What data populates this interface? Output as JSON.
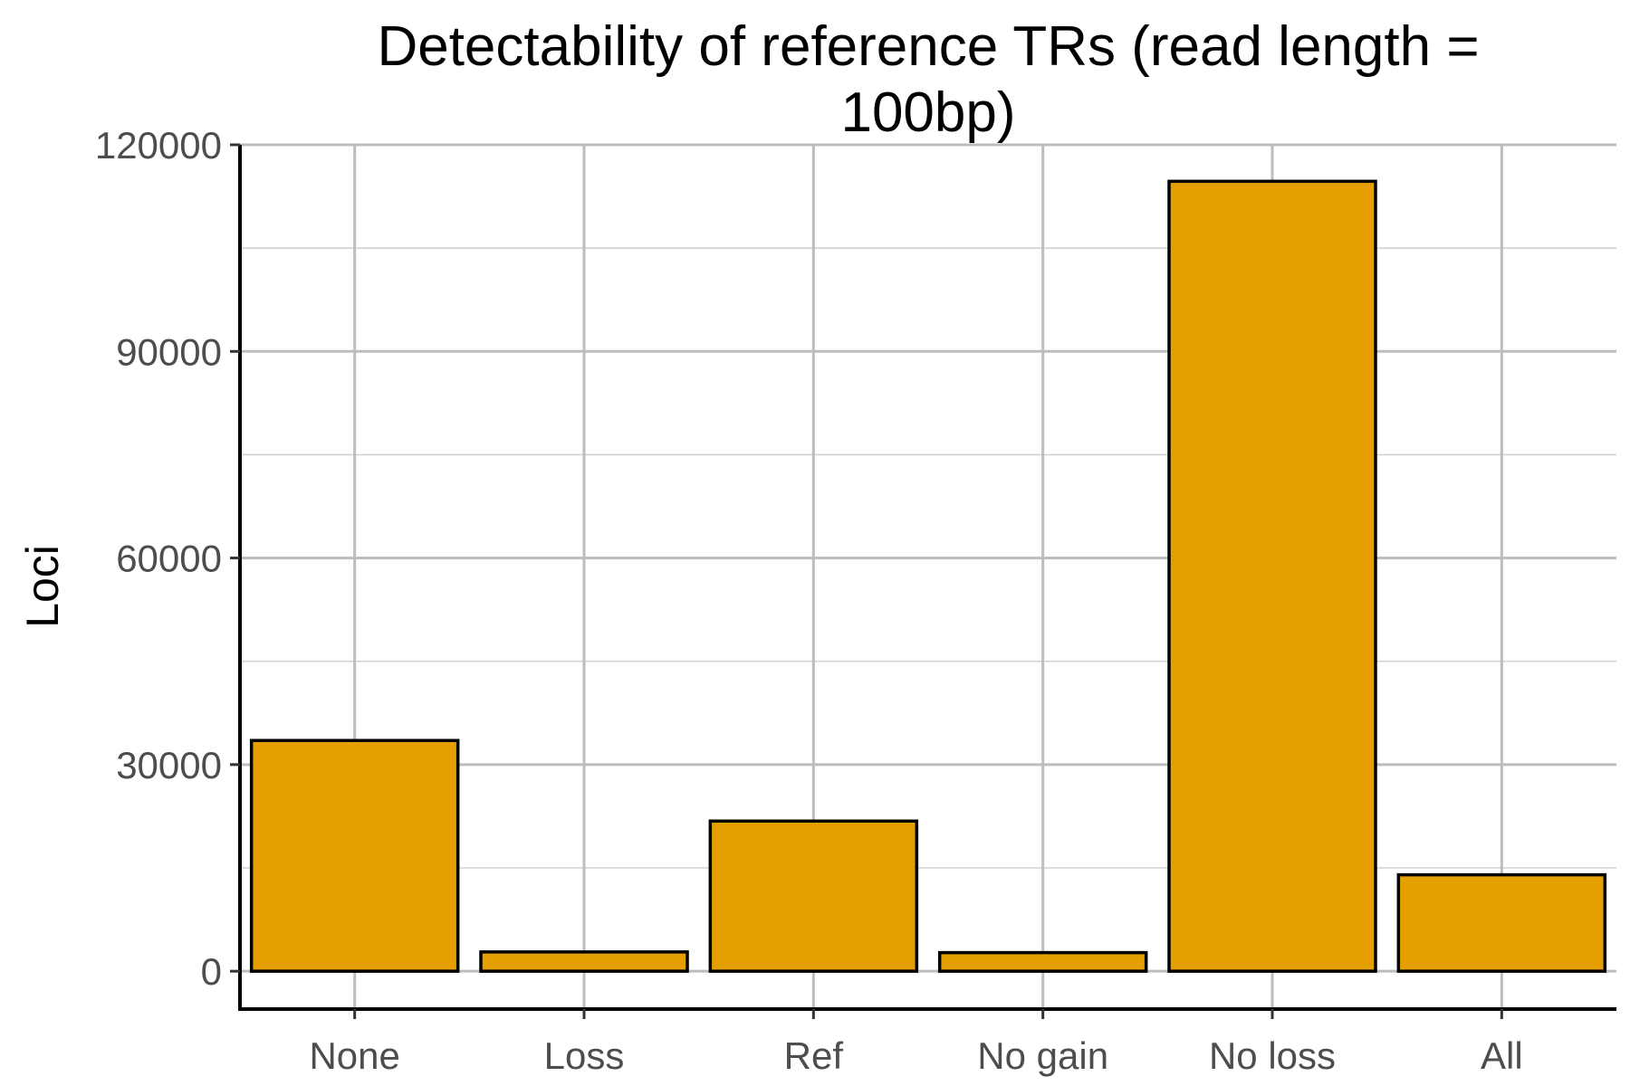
{
  "chart_data": {
    "type": "bar",
    "title": "Detectability of reference TRs (read length = 100bp)",
    "title_lines": [
      "Detectability of reference TRs (read length =",
      "100bp)"
    ],
    "xlabel": "",
    "ylabel": "Loci",
    "categories": [
      "None",
      "Loss",
      "Ref",
      "No gain",
      "No loss",
      "All"
    ],
    "values": [
      33500,
      2800,
      21800,
      2700,
      114700,
      14000
    ],
    "ylim": [
      -5500,
      120000
    ],
    "yticks": [
      0,
      30000,
      60000,
      90000,
      120000
    ],
    "ytick_labels": [
      "0",
      "30000",
      "60000",
      "90000",
      "120000"
    ],
    "minor_yticks": [
      15000,
      45000,
      75000,
      105000
    ],
    "grid": true,
    "legend": "none",
    "bar_color": "#E69F00",
    "edge_color": "#000000"
  }
}
